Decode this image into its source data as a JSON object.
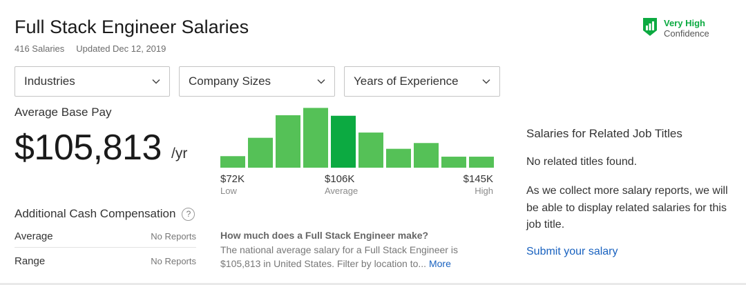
{
  "header": {
    "title": "Full Stack Engineer Salaries",
    "salary_count": "416 Salaries",
    "updated": "Updated Dec 12, 2019"
  },
  "confidence": {
    "level": "Very High",
    "label": "Confidence",
    "icon": "bar-chart-shield-icon",
    "color": "#0caa41"
  },
  "filters": [
    {
      "label": "Industries"
    },
    {
      "label": "Company Sizes"
    },
    {
      "label": "Years of Experience"
    }
  ],
  "average": {
    "label": "Average Base Pay",
    "value": "$105,813",
    "unit": "/yr"
  },
  "histogram": {
    "bars": [
      0.22,
      0.57,
      1.0,
      1.14,
      0.99,
      0.67,
      0.36,
      0.47,
      0.21,
      0.21
    ],
    "highlight_index": 4,
    "color": "#55c157",
    "highlight_color": "#0caa41",
    "low": {
      "value": "$72K",
      "label": "Low"
    },
    "avg": {
      "value": "$106K",
      "label": "Average"
    },
    "high": {
      "value": "$145K",
      "label": "High"
    }
  },
  "additional_cash": {
    "title": "Additional Cash Compensation",
    "help_icon": "?",
    "rows": [
      {
        "label": "Average",
        "value": "No Reports"
      },
      {
        "label": "Range",
        "value": "No Reports"
      }
    ]
  },
  "faq": {
    "question": "How much does a Full Stack Engineer make?",
    "answer": "The national average salary for a Full Stack Engineer is $105,813 in United States. Filter by location to...",
    "more": "More"
  },
  "related": {
    "title": "Salaries for Related Job Titles",
    "none_text": "No related titles found.",
    "description": "As we collect more salary reports, we will be able to display related salaries for this job title.",
    "submit_link": "Submit your salary",
    "link_color": "#1861bf"
  }
}
